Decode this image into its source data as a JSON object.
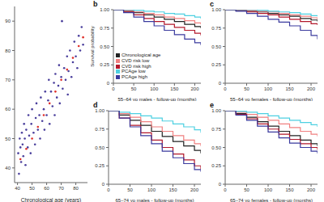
{
  "chart_data": [
    {
      "type": "scatter",
      "x_label": "Chronological age (years)",
      "xlim": [
        38,
        88
      ],
      "xticks": [
        40,
        50,
        60,
        70,
        80
      ],
      "ylim": [
        35,
        95
      ],
      "yticks": [
        40,
        50,
        60,
        70,
        80,
        90
      ],
      "series": [
        {
          "color": "#4a3f9c",
          "marker": "circle",
          "x": [
            40.5,
            41,
            41.5,
            42,
            42.5,
            43,
            43.5,
            44,
            44.5,
            45,
            45.5,
            46,
            47,
            47.5,
            48,
            49,
            49.5,
            50,
            51,
            52,
            52.5,
            53,
            54,
            55,
            55.5,
            56,
            57,
            58,
            58.5,
            59,
            60,
            61,
            61.5,
            62,
            63,
            64,
            65,
            65.5,
            66,
            67,
            68,
            68.5,
            69,
            70,
            70.5,
            71,
            72,
            73,
            74,
            74.5,
            75,
            76,
            77,
            78,
            79,
            80,
            81,
            82,
            83,
            84,
            85
          ],
          "values": [
            45,
            38,
            50,
            47,
            42,
            52,
            48,
            44,
            55,
            50,
            41,
            53,
            47,
            58,
            51,
            45,
            55,
            60,
            52,
            48,
            57,
            62,
            53,
            58,
            50,
            64,
            56,
            60,
            53,
            66,
            58,
            63,
            70,
            55,
            66,
            61,
            69,
            58,
            72,
            64,
            68,
            75,
            62,
            71,
            90,
            67,
            74,
            70,
            78,
            65,
            73,
            80,
            71,
            76,
            83,
            78,
            74,
            85,
            80,
            88,
            82
          ]
        },
        {
          "color": "#e0302a",
          "marker": "circle",
          "x": [
            42,
            46,
            50,
            54,
            58,
            62,
            66,
            70,
            74,
            78,
            82,
            85
          ],
          "values": [
            43,
            46.5,
            50,
            54,
            58,
            62,
            66,
            70,
            73.5,
            77.5,
            81.5,
            84.5
          ]
        }
      ]
    },
    {
      "type": "line",
      "title": "b",
      "x_label": "55–64 yo males - follow-up (months)",
      "y_label": "Survival probability",
      "line_style": "step",
      "legend": "left",
      "x": [
        0,
        25,
        50,
        75,
        100,
        125,
        150,
        175,
        200,
        215
      ],
      "xlim": [
        0,
        215
      ],
      "xticks": [
        0,
        50,
        100,
        150,
        200
      ],
      "ylim": [
        0,
        1
      ],
      "yticks": [
        0,
        0.25,
        {
          "value": 0.5,
          "label": "0.50"
        },
        0.75,
        {
          "value": 1,
          "label": "1.00"
        }
      ],
      "series": [
        {
          "name": "Chronological age",
          "color": "#222222",
          "values": [
            1,
            0.98,
            0.96,
            0.93,
            0.9,
            0.87,
            0.84,
            0.8,
            0.77,
            0.75
          ]
        },
        {
          "name": "CVD risk low",
          "color": "#f08080",
          "values": [
            1,
            0.99,
            0.97,
            0.95,
            0.93,
            0.9,
            0.88,
            0.85,
            0.82,
            0.8
          ]
        },
        {
          "name": "CVD risk high",
          "color": "#b2182b",
          "values": [
            1,
            0.97,
            0.93,
            0.88,
            0.84,
            0.8,
            0.76,
            0.72,
            0.68,
            0.65
          ]
        },
        {
          "name": "PCAge low",
          "color": "#4dd0e1",
          "values": [
            1,
            1,
            0.99,
            0.98,
            0.97,
            0.95,
            0.94,
            0.92,
            0.9,
            0.88
          ]
        },
        {
          "name": "PCAge high",
          "color": "#3a3a9e",
          "values": [
            1,
            0.96,
            0.9,
            0.84,
            0.78,
            0.72,
            0.66,
            0.6,
            0.55,
            0.52
          ]
        }
      ]
    },
    {
      "type": "line",
      "title": "c",
      "x_label": "55–64 yo females - follow-up (months)",
      "line_style": "step",
      "x": [
        0,
        25,
        50,
        75,
        100,
        125,
        150,
        175,
        200,
        215
      ],
      "xlim": [
        0,
        215
      ],
      "xticks": [
        0,
        50,
        100,
        150,
        200
      ],
      "ylim": [
        0,
        1
      ],
      "yticks": [
        0,
        0.25,
        {
          "value": 0.5,
          "label": "0.50"
        },
        0.75,
        {
          "value": 1,
          "label": "1.00"
        }
      ],
      "series": [
        {
          "color": "#222222",
          "values": [
            1,
            0.99,
            0.98,
            0.97,
            0.95,
            0.93,
            0.91,
            0.88,
            0.86,
            0.84
          ]
        },
        {
          "color": "#f08080",
          "values": [
            1,
            1,
            0.99,
            0.98,
            0.97,
            0.95,
            0.93,
            0.91,
            0.89,
            0.87
          ]
        },
        {
          "color": "#b2182b",
          "values": [
            1,
            0.99,
            0.97,
            0.95,
            0.93,
            0.9,
            0.87,
            0.84,
            0.81,
            0.79
          ]
        },
        {
          "color": "#4dd0e1",
          "values": [
            1,
            1,
            1,
            0.99,
            0.98,
            0.97,
            0.96,
            0.94,
            0.92,
            0.91
          ]
        },
        {
          "color": "#3a3a9e",
          "values": [
            1,
            0.98,
            0.95,
            0.91,
            0.87,
            0.83,
            0.78,
            0.72,
            0.65,
            0.6
          ]
        }
      ]
    },
    {
      "type": "line",
      "title": "d",
      "x_label": "65–74 yo males - follow-up (months)",
      "line_style": "step",
      "x": [
        0,
        25,
        50,
        75,
        100,
        125,
        150,
        175,
        200,
        215
      ],
      "xlim": [
        0,
        215
      ],
      "xticks": [
        0,
        50,
        100,
        150,
        200
      ],
      "ylim": [
        0,
        1
      ],
      "yticks": [
        0,
        0.25,
        {
          "value": 0.5,
          "label": "0.50"
        },
        0.75,
        {
          "value": 1,
          "label": "1.00"
        }
      ],
      "series": [
        {
          "color": "#222222",
          "values": [
            1,
            0.94,
            0.87,
            0.8,
            0.72,
            0.65,
            0.58,
            0.52,
            0.46,
            0.42
          ]
        },
        {
          "color": "#f08080",
          "values": [
            1,
            0.96,
            0.91,
            0.85,
            0.78,
            0.72,
            0.66,
            0.6,
            0.55,
            0.52
          ]
        },
        {
          "color": "#b2182b",
          "values": [
            1,
            0.9,
            0.8,
            0.7,
            0.6,
            0.5,
            0.41,
            0.33,
            0.25,
            0.2
          ]
        },
        {
          "color": "#4dd0e1",
          "values": [
            1,
            0.98,
            0.96,
            0.93,
            0.9,
            0.86,
            0.82,
            0.78,
            0.74,
            0.7
          ]
        },
        {
          "color": "#3a3a9e",
          "values": [
            1,
            0.9,
            0.78,
            0.66,
            0.55,
            0.45,
            0.36,
            0.28,
            0.2,
            0.17
          ]
        }
      ]
    },
    {
      "type": "line",
      "title": "e",
      "x_label": "65–74 yo females - follow-up (months)",
      "line_style": "step",
      "x": [
        0,
        25,
        50,
        75,
        100,
        125,
        150,
        175,
        200,
        215
      ],
      "xlim": [
        0,
        215
      ],
      "xticks": [
        0,
        50,
        100,
        150,
        200
      ],
      "ylim": [
        0,
        1
      ],
      "yticks": [
        0,
        0.25,
        {
          "value": 0.5,
          "label": "0.50"
        },
        0.75,
        {
          "value": 1,
          "label": "1.00"
        }
      ],
      "series": [
        {
          "color": "#222222",
          "values": [
            1,
            0.96,
            0.91,
            0.85,
            0.79,
            0.72,
            0.66,
            0.6,
            0.55,
            0.52
          ]
        },
        {
          "color": "#f08080",
          "values": [
            1,
            0.98,
            0.95,
            0.91,
            0.87,
            0.82,
            0.77,
            0.72,
            0.68,
            0.65
          ]
        },
        {
          "color": "#b2182b",
          "values": [
            1,
            0.95,
            0.89,
            0.82,
            0.75,
            0.68,
            0.61,
            0.55,
            0.5,
            0.47
          ]
        },
        {
          "color": "#4dd0e1",
          "values": [
            1,
            0.99,
            0.98,
            0.96,
            0.93,
            0.9,
            0.87,
            0.84,
            0.81,
            0.78
          ]
        },
        {
          "color": "#3a3a9e",
          "values": [
            1,
            0.94,
            0.87,
            0.79,
            0.71,
            0.63,
            0.56,
            0.5,
            0.45,
            0.42
          ]
        }
      ]
    }
  ]
}
